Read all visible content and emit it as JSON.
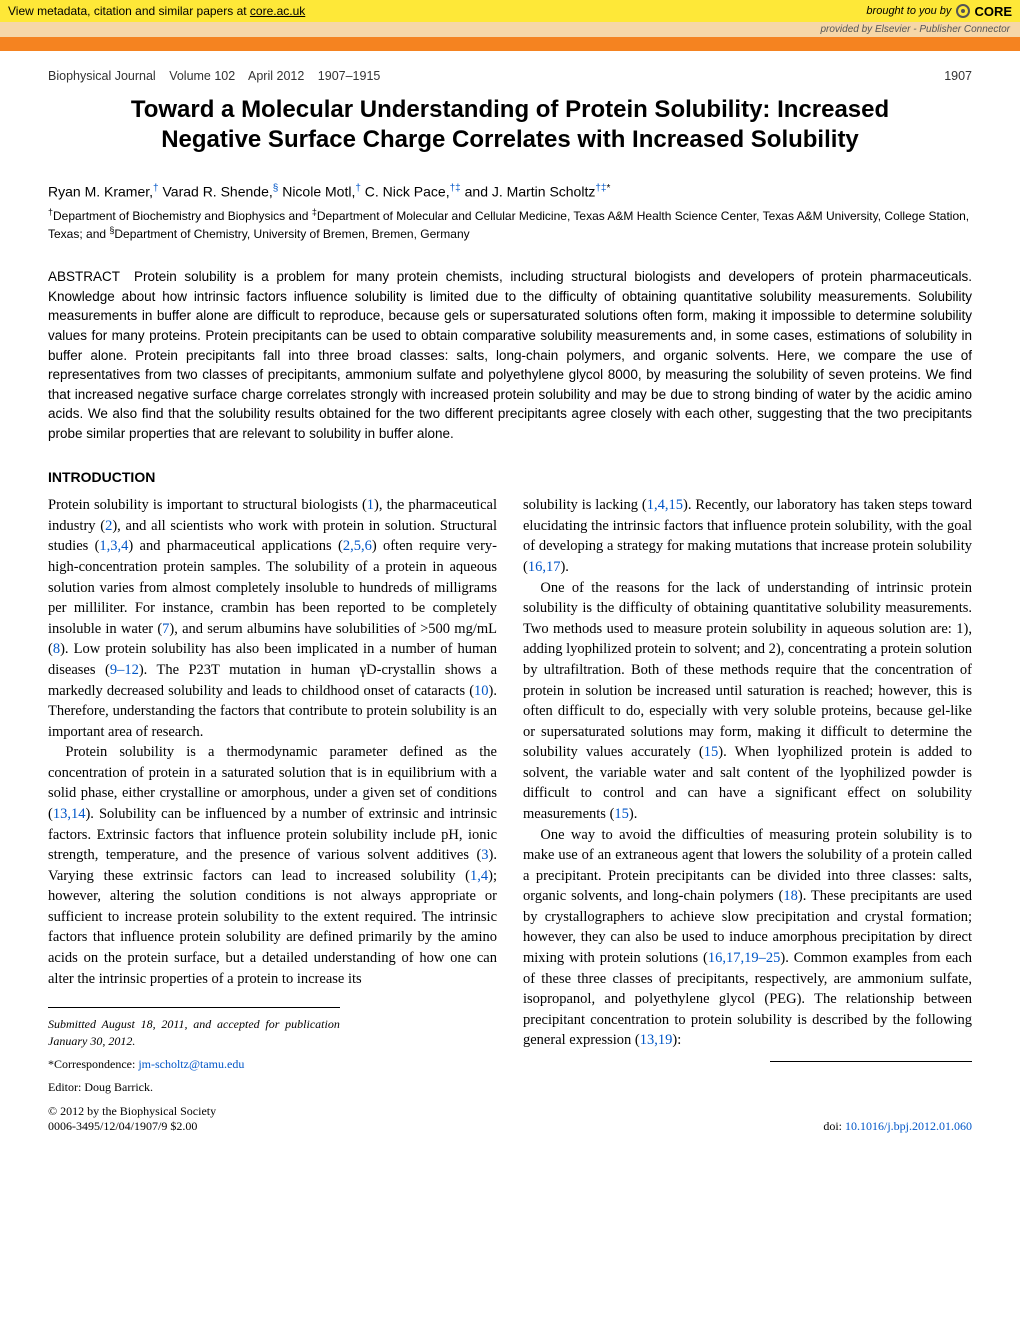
{
  "banner": {
    "metadata_prefix": "View metadata, citation and similar papers at ",
    "metadata_link": "core.ac.uk",
    "brought": "brought to you by ",
    "core": "CORE",
    "provided": "provided by ",
    "provider": "Elsevier - Publisher Connector"
  },
  "journal": {
    "name": "Biophysical Journal",
    "volume": "Volume 102",
    "date": "April 2012",
    "pages": "1907–1915",
    "pagenum": "1907"
  },
  "title": "Toward a Molecular Understanding of Protein Solubility: Increased Negative Surface Charge Correlates with Increased Solubility",
  "authors_html": "Ryan M. Kramer,<sup>†</sup> Varad R. Shende,<sup>§</sup> Nicole Motl,<sup>†</sup> C. Nick Pace,<sup>†‡</sup> and J. Martin Scholtz<sup>†‡</sup><sup class=\"star\">*</sup>",
  "affiliations_html": "<sup>†</sup>Department of Biochemistry and Biophysics and <sup>‡</sup>Department of Molecular and Cellular Medicine, Texas A&amp;M Health Science Center, Texas A&amp;M University, College Station, Texas; and <sup>§</sup>Department of Chemistry, University of Bremen, Bremen, Germany",
  "abstract": "Protein solubility is a problem for many protein chemists, including structural biologists and developers of protein pharmaceuticals. Knowledge about how intrinsic factors influence solubility is limited due to the difficulty of obtaining quantitative solubility measurements. Solubility measurements in buffer alone are difficult to reproduce, because gels or supersaturated solutions often form, making it impossible to determine solubility values for many proteins. Protein precipitants can be used to obtain comparative solubility measurements and, in some cases, estimations of solubility in buffer alone. Protein precipitants fall into three broad classes: salts, long-chain polymers, and organic solvents. Here, we compare the use of representatives from two classes of precipitants, ammonium sulfate and polyethylene glycol 8000, by measuring the solubility of seven proteins. We find that increased negative surface charge correlates strongly with increased protein solubility and may be due to strong binding of water by the acidic amino acids. We also find that the solubility results obtained for the two different precipitants agree closely with each other, suggesting that the two precipitants probe similar properties that are relevant to solubility in buffer alone.",
  "abstract_label": "ABSTRACT",
  "introduction_heading": "INTRODUCTION",
  "body": {
    "p1": "Protein solubility is important to structural biologists (<span class=\"ref\">1</span>), the pharmaceutical industry (<span class=\"ref\">2</span>), and all scientists who work with protein in solution. Structural studies (<span class=\"ref\">1,3,4</span>) and pharmaceutical applications (<span class=\"ref\">2,5,6</span>) often require very-high-concentration protein samples. The solubility of a protein in aqueous solution varies from almost completely insoluble to hundreds of milligrams per milliliter. For instance, crambin has been reported to be completely insoluble in water (<span class=\"ref\">7</span>), and serum albumins have solubilities of &gt;500 mg/mL (<span class=\"ref\">8</span>). Low protein solubility has also been implicated in a number of human diseases (<span class=\"ref\">9–12</span>). The P23T mutation in human γD-crystallin shows a markedly decreased solubility and leads to childhood onset of cataracts (<span class=\"ref\">10</span>). Therefore, understanding the factors that contribute to protein solubility is an important area of research.",
    "p2": "Protein solubility is a thermodynamic parameter defined as the concentration of protein in a saturated solution that is in equilibrium with a solid phase, either crystalline or amorphous, under a given set of conditions (<span class=\"ref\">13,14</span>). Solubility can be influenced by a number of extrinsic and intrinsic factors. Extrinsic factors that influence protein solubility include pH, ionic strength, temperature, and the presence of various solvent additives (<span class=\"ref\">3</span>). Varying these extrinsic factors can lead to increased solubility (<span class=\"ref\">1,4</span>); however, altering the solution conditions is not always appropriate or sufficient to increase protein solubility to the extent required. The intrinsic factors that influence protein solubility are defined primarily by the amino acids on the protein surface, but a detailed understanding of how one can alter the intrinsic properties of a protein to increase its",
    "p3": "solubility is lacking (<span class=\"ref\">1,4,15</span>). Recently, our laboratory has taken steps toward elucidating the intrinsic factors that influence protein solubility, with the goal of developing a strategy for making mutations that increase protein solubility (<span class=\"ref\">16,17</span>).",
    "p4": "One of the reasons for the lack of understanding of intrinsic protein solubility is the difficulty of obtaining quantitative solubility measurements. Two methods used to measure protein solubility in aqueous solution are: 1), adding lyophilized protein to solvent; and 2), concentrating a protein solution by ultrafiltration. Both of these methods require that the concentration of protein in solution be increased until saturation is reached; however, this is often difficult to do, especially with very soluble proteins, because gel-like or supersaturated solutions may form, making it difficult to determine the solubility values accurately (<span class=\"ref\">15</span>). When lyophilized protein is added to solvent, the variable water and salt content of the lyophilized powder is difficult to control and can have a significant effect on solubility measurements (<span class=\"ref\">15</span>).",
    "p5": "One way to avoid the difficulties of measuring protein solubility is to make use of an extraneous agent that lowers the solubility of a protein called a precipitant. Protein precipitants can be divided into three classes: salts, organic solvents, and long-chain polymers (<span class=\"ref\">18</span>). These precipitants are used by crystallographers to achieve slow precipitation and crystal formation; however, they can also be used to induce amorphous precipitation by direct mixing with protein solutions (<span class=\"ref\">16,17,19–25</span>). Common examples from each of these three classes of precipitants, respectively, are ammonium sulfate, isopropanol, and polyethylene glycol (PEG). The relationship between precipitant concentration to protein solubility is described by the following general expression (<span class=\"ref\">13,19</span>):"
  },
  "footnotes": {
    "submitted": "Submitted August 18, 2011, and accepted for publication January 30, 2012.",
    "corr_label": "*Correspondence: ",
    "corr_email": "jm-scholtz@tamu.edu",
    "editor": "Editor: Doug Barrick.",
    "copyright": "© 2012 by the Biophysical Society",
    "issn": "0006-3495/12/04/1907/9   $2.00"
  },
  "doi": {
    "label": "doi: ",
    "value": "10.1016/j.bpj.2012.01.060"
  },
  "colors": {
    "banner_bg": "#fee838",
    "subbanner_bg": "#f6d7a8",
    "orange_bar": "#f58320",
    "link_blue": "#0056c7"
  }
}
